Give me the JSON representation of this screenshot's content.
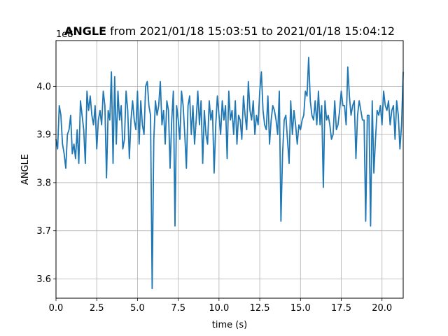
{
  "chart_data": {
    "type": "line",
    "title_bold": "ANGLE",
    "title_rest": " from 2021/01/18 15:03:51 to 2021/01/18 15:04:12",
    "offset_label": "1e8",
    "xlabel": "time (s)",
    "ylabel": "ANGLE",
    "xlim": [
      0.0,
      21.3
    ],
    "ylim": [
      3.56,
      4.095
    ],
    "x_ticks": [
      0.0,
      2.5,
      5.0,
      7.5,
      10.0,
      12.5,
      15.0,
      17.5,
      20.0
    ],
    "x_tick_labels": [
      "0.0",
      "2.5",
      "5.0",
      "7.5",
      "10.0",
      "12.5",
      "15.0",
      "17.5",
      "20.0"
    ],
    "y_ticks": [
      3.6,
      3.7,
      3.8,
      3.9,
      4.0
    ],
    "y_tick_labels": [
      "3.6",
      "3.7",
      "3.8",
      "3.9",
      "4.0"
    ],
    "grid": true,
    "line_color": "#1f77b4",
    "series": [
      {
        "x": [
          0.0,
          0.1,
          0.2,
          0.3,
          0.4,
          0.5,
          0.6,
          0.7,
          0.8,
          0.9,
          1.0,
          1.1,
          1.2,
          1.3,
          1.4,
          1.5,
          1.6,
          1.7,
          1.8,
          1.9,
          2.0,
          2.1,
          2.2,
          2.3,
          2.4,
          2.5,
          2.6,
          2.7,
          2.8,
          2.9,
          3.0,
          3.1,
          3.2,
          3.3,
          3.4,
          3.5,
          3.6,
          3.7,
          3.8,
          3.9,
          4.0,
          4.1,
          4.2,
          4.3,
          4.4,
          4.5,
          4.6,
          4.7,
          4.8,
          4.9,
          5.0,
          5.1,
          5.2,
          5.3,
          5.4,
          5.5,
          5.6,
          5.7,
          5.8,
          5.9,
          6.0,
          6.1,
          6.2,
          6.3,
          6.4,
          6.5,
          6.6,
          6.7,
          6.8,
          6.9,
          7.0,
          7.1,
          7.2,
          7.3,
          7.4,
          7.5,
          7.6,
          7.7,
          7.8,
          7.9,
          8.0,
          8.1,
          8.2,
          8.3,
          8.4,
          8.5,
          8.6,
          8.7,
          8.8,
          8.9,
          9.0,
          9.1,
          9.2,
          9.3,
          9.4,
          9.5,
          9.6,
          9.7,
          9.8,
          9.9,
          10.0,
          10.1,
          10.2,
          10.3,
          10.4,
          10.5,
          10.6,
          10.7,
          10.8,
          10.9,
          11.0,
          11.1,
          11.2,
          11.3,
          11.4,
          11.5,
          11.6,
          11.7,
          11.8,
          11.9,
          12.0,
          12.1,
          12.2,
          12.3,
          12.4,
          12.5,
          12.6,
          12.7,
          12.8,
          12.9,
          13.0,
          13.1,
          13.2,
          13.3,
          13.4,
          13.5,
          13.6,
          13.7,
          13.8,
          13.9,
          14.0,
          14.1,
          14.2,
          14.3,
          14.4,
          14.5,
          14.6,
          14.7,
          14.8,
          14.9,
          15.0,
          15.1,
          15.2,
          15.3,
          15.4,
          15.5,
          15.6,
          15.7,
          15.8,
          15.9,
          16.0,
          16.1,
          16.2,
          16.3,
          16.4,
          16.5,
          16.6,
          16.7,
          16.8,
          16.9,
          17.0,
          17.1,
          17.2,
          17.3,
          17.4,
          17.5,
          17.6,
          17.7,
          17.8,
          17.9,
          18.0,
          18.1,
          18.2,
          18.3,
          18.4,
          18.5,
          18.6,
          18.7,
          18.8,
          18.9,
          19.0,
          19.1,
          19.2,
          19.3,
          19.4,
          19.5,
          19.6,
          19.7,
          19.8,
          19.9,
          20.0,
          20.1,
          20.2,
          20.3,
          20.4,
          20.5,
          20.6,
          20.7,
          20.8,
          20.9,
          21.0,
          21.1,
          21.2,
          21.3
        ],
        "y": [
          3.89,
          3.87,
          3.96,
          3.94,
          3.88,
          3.86,
          3.83,
          3.9,
          3.91,
          3.94,
          3.86,
          3.88,
          3.85,
          3.91,
          3.84,
          3.97,
          3.94,
          3.91,
          3.84,
          3.99,
          3.95,
          3.98,
          3.94,
          3.92,
          3.96,
          3.87,
          3.93,
          3.95,
          3.92,
          3.99,
          3.96,
          3.81,
          3.95,
          3.93,
          4.03,
          3.84,
          4.02,
          3.88,
          3.99,
          3.93,
          3.96,
          3.87,
          3.89,
          3.99,
          3.95,
          3.85,
          3.93,
          3.97,
          3.93,
          3.91,
          3.99,
          3.88,
          3.97,
          3.92,
          3.9,
          4.0,
          4.01,
          3.96,
          3.94,
          3.58,
          3.89,
          3.97,
          3.94,
          3.96,
          4.01,
          3.92,
          3.95,
          3.88,
          3.97,
          3.95,
          3.83,
          3.93,
          3.99,
          3.71,
          3.96,
          3.93,
          3.89,
          3.99,
          3.96,
          3.9,
          3.83,
          3.96,
          3.98,
          3.9,
          3.96,
          3.88,
          3.93,
          3.99,
          3.92,
          3.97,
          3.84,
          3.95,
          3.9,
          3.88,
          3.97,
          3.93,
          3.95,
          3.82,
          3.92,
          3.98,
          3.94,
          3.9,
          3.97,
          3.93,
          3.96,
          3.85,
          3.99,
          3.93,
          3.95,
          3.9,
          3.97,
          3.88,
          3.94,
          3.93,
          3.89,
          3.98,
          3.94,
          3.91,
          4.01,
          3.95,
          3.93,
          3.97,
          3.9,
          3.94,
          3.92,
          3.99,
          4.03,
          3.95,
          3.92,
          3.91,
          3.98,
          3.88,
          3.93,
          3.96,
          3.95,
          3.93,
          3.9,
          3.99,
          3.72,
          3.86,
          3.93,
          3.94,
          3.89,
          3.84,
          3.97,
          3.9,
          3.95,
          3.92,
          3.88,
          3.92,
          3.91,
          3.93,
          3.94,
          3.99,
          3.98,
          4.06,
          3.97,
          3.94,
          3.93,
          3.97,
          3.92,
          3.99,
          3.92,
          3.96,
          3.79,
          3.97,
          3.93,
          3.94,
          3.92,
          3.89,
          3.9,
          3.97,
          3.91,
          3.92,
          3.95,
          3.99,
          3.96,
          3.96,
          3.92,
          4.04,
          3.98,
          3.94,
          3.96,
          3.97,
          3.85,
          3.94,
          3.97,
          3.95,
          3.93,
          3.93,
          3.72,
          3.94,
          3.94,
          3.71,
          3.97,
          3.82,
          3.89,
          3.95,
          3.94,
          3.96,
          3.92,
          3.99,
          3.96,
          3.95,
          3.97,
          3.92,
          3.95,
          3.96,
          3.89,
          3.97,
          3.94,
          3.87,
          3.92,
          4.03
        ]
      }
    ]
  }
}
